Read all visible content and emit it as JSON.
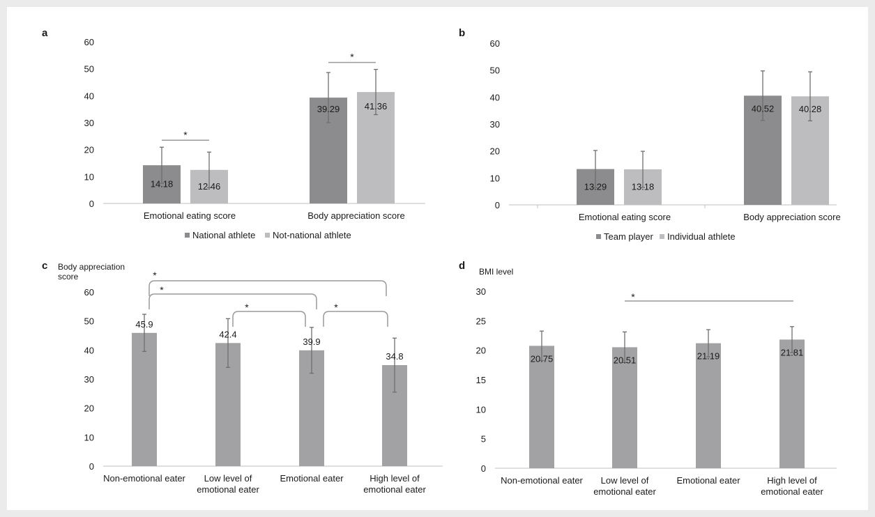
{
  "colors": {
    "dark_gray": "#8c8c8e",
    "light_gray": "#bdbdbf",
    "mid_gray": "#a2a2a4",
    "error_bar": "#6e6e6e",
    "axis": "#bfbfbf",
    "bracket": "#9a9a9a"
  },
  "chart_data": [
    {
      "panel": "a",
      "type": "bar",
      "categories": [
        "Emotional eating score",
        "Body appreciation score"
      ],
      "series": [
        {
          "name": "National athlete",
          "values": [
            14.18,
            39.29
          ],
          "errors": [
            6.7,
            9.3
          ]
        },
        {
          "name": "Not-national athlete",
          "values": [
            12.46,
            41.36
          ],
          "errors": [
            6.6,
            8.4
          ]
        }
      ],
      "value_labels": [
        [
          "14.18",
          "39.29"
        ],
        [
          "12.46",
          "41.36"
        ]
      ],
      "ylim": [
        0,
        60
      ],
      "yticks": [
        "0",
        "10",
        "20",
        "30",
        "40",
        "50",
        "60"
      ],
      "ylabel": "",
      "significance": [
        {
          "category": 0,
          "label": "*"
        },
        {
          "category": 1,
          "label": "*"
        }
      ],
      "legend_position": "bottom"
    },
    {
      "panel": "b",
      "type": "bar",
      "categories": [
        "Emotional eating score",
        "Body appreciation score"
      ],
      "series": [
        {
          "name": "Team player",
          "values": [
            13.29,
            40.52
          ],
          "errors": [
            6.9,
            9.2
          ]
        },
        {
          "name": "Individual athlete",
          "values": [
            13.18,
            40.28
          ],
          "errors": [
            6.7,
            9.1
          ]
        }
      ],
      "value_labels": [
        [
          "13.29",
          "40.52"
        ],
        [
          "13.18",
          "40.28"
        ]
      ],
      "ylim": [
        0,
        60
      ],
      "yticks": [
        "0",
        "10",
        "20",
        "30",
        "40",
        "50",
        "60"
      ],
      "ylabel": "",
      "legend_position": "bottom"
    },
    {
      "panel": "c",
      "type": "bar",
      "categories": [
        "Non-emotional eater",
        "Low level of emotional eater",
        "Emotional eater",
        "High level of emotional eater"
      ],
      "category_lines": [
        [
          "Non-emotional eater"
        ],
        [
          "Low level of",
          "emotional eater"
        ],
        [
          "Emotional eater"
        ],
        [
          "High level of",
          "emotional eater"
        ]
      ],
      "values": [
        45.9,
        42.4,
        39.9,
        34.8
      ],
      "errors": [
        6.4,
        8.4,
        7.9,
        9.3
      ],
      "value_labels": [
        "45.9",
        "42.4",
        "39.9",
        "34.8"
      ],
      "ylim": [
        0,
        60
      ],
      "yticks": [
        "0",
        "10",
        "20",
        "30",
        "40",
        "50",
        "60"
      ],
      "ylabel_lines": [
        "Body appreciation",
        "score"
      ],
      "significance": [
        {
          "from": 0,
          "to": 3,
          "label": "*"
        },
        {
          "from": 0,
          "to": 2,
          "label": "*"
        },
        {
          "from": 1,
          "to": 2,
          "label": "*"
        },
        {
          "from": 2,
          "to": 3,
          "label": "*"
        }
      ]
    },
    {
      "panel": "d",
      "type": "bar",
      "categories": [
        "Non-emotional eater",
        "Low level of emotional eater",
        "Emotional eater",
        "High level of emotional eater"
      ],
      "category_lines": [
        [
          "Non-emotional eater"
        ],
        [
          "Low level of",
          "emotional eater"
        ],
        [
          "Emotional eater"
        ],
        [
          "High level of",
          "emotional eater"
        ]
      ],
      "values": [
        20.75,
        20.51,
        21.19,
        21.81
      ],
      "errors": [
        2.5,
        2.6,
        2.3,
        2.2
      ],
      "value_labels": [
        "20.75",
        "20.51",
        "21.19",
        "21.81"
      ],
      "ylim": [
        0,
        30
      ],
      "yticks": [
        "0",
        "5",
        "10",
        "15",
        "20",
        "25",
        "30"
      ],
      "ylabel_lines": [
        "BMI level"
      ],
      "significance": [
        {
          "from": 1,
          "to": 3,
          "label": "*"
        }
      ]
    }
  ]
}
